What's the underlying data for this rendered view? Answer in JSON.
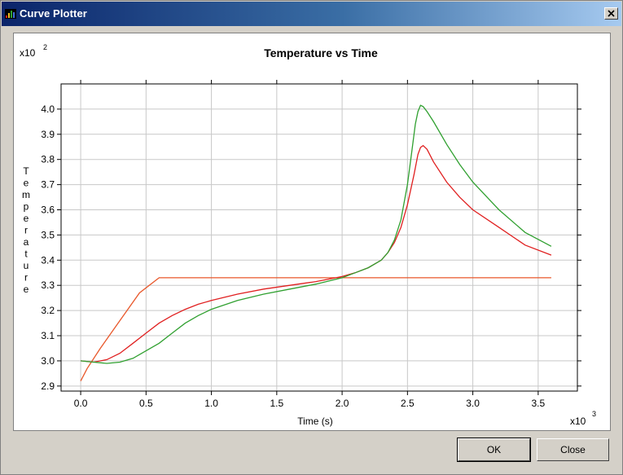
{
  "window": {
    "title": "Curve Plotter",
    "ok_label": "OK",
    "close_label": "Close"
  },
  "chart_data": {
    "type": "line",
    "title": "Temperature vs Time",
    "xlabel": "Time (s)",
    "ylabel": "Temperature",
    "x_multiplier_label": "x10",
    "x_multiplier_exp": "3",
    "y_multiplier_label": "x10",
    "y_multiplier_exp": "2",
    "xlim": [
      -0.15,
      3.8
    ],
    "ylim": [
      2.88,
      4.1
    ],
    "x_ticks": [
      "0.0",
      "0.5",
      "1.0",
      "1.5",
      "2.0",
      "2.5",
      "3.0",
      "3.5"
    ],
    "y_ticks": [
      "2.9",
      "3.0",
      "3.1",
      "3.2",
      "3.3",
      "3.4",
      "3.5",
      "3.6",
      "3.7",
      "3.8",
      "3.9",
      "4.0"
    ],
    "grid": true,
    "series": [
      {
        "color": "#e8572a",
        "x": [
          0.0,
          0.05,
          0.15,
          0.3,
          0.45,
          0.6,
          0.62,
          1.0,
          2.0,
          3.0,
          3.6
        ],
        "y": [
          2.92,
          2.97,
          3.05,
          3.16,
          3.27,
          3.33,
          3.33,
          3.33,
          3.33,
          3.33,
          3.33
        ]
      },
      {
        "color": "#e02020",
        "x": [
          0.0,
          0.1,
          0.2,
          0.3,
          0.4,
          0.5,
          0.6,
          0.7,
          0.8,
          0.9,
          1.0,
          1.2,
          1.4,
          1.6,
          1.8,
          2.0,
          2.1,
          2.2,
          2.3,
          2.35,
          2.4,
          2.45,
          2.5,
          2.55,
          2.58,
          2.6,
          2.62,
          2.65,
          2.7,
          2.8,
          2.9,
          3.0,
          3.2,
          3.4,
          3.6
        ],
        "y": [
          3.0,
          2.995,
          3.005,
          3.03,
          3.07,
          3.11,
          3.15,
          3.18,
          3.205,
          3.225,
          3.24,
          3.265,
          3.285,
          3.3,
          3.315,
          3.335,
          3.35,
          3.37,
          3.4,
          3.43,
          3.47,
          3.53,
          3.62,
          3.74,
          3.82,
          3.848,
          3.855,
          3.84,
          3.79,
          3.71,
          3.65,
          3.6,
          3.53,
          3.46,
          3.42
        ]
      },
      {
        "color": "#30a030",
        "x": [
          0.0,
          0.1,
          0.2,
          0.3,
          0.4,
          0.5,
          0.6,
          0.7,
          0.8,
          0.9,
          1.0,
          1.2,
          1.4,
          1.6,
          1.8,
          2.0,
          2.1,
          2.2,
          2.3,
          2.35,
          2.4,
          2.45,
          2.5,
          2.53,
          2.56,
          2.58,
          2.6,
          2.62,
          2.65,
          2.7,
          2.8,
          2.9,
          3.0,
          3.2,
          3.4,
          3.6
        ],
        "y": [
          3.0,
          2.995,
          2.99,
          2.995,
          3.01,
          3.04,
          3.07,
          3.11,
          3.15,
          3.18,
          3.205,
          3.24,
          3.265,
          3.285,
          3.305,
          3.33,
          3.35,
          3.37,
          3.4,
          3.43,
          3.48,
          3.56,
          3.7,
          3.82,
          3.94,
          3.99,
          4.015,
          4.01,
          3.99,
          3.95,
          3.86,
          3.78,
          3.71,
          3.6,
          3.51,
          3.455
        ]
      }
    ]
  }
}
